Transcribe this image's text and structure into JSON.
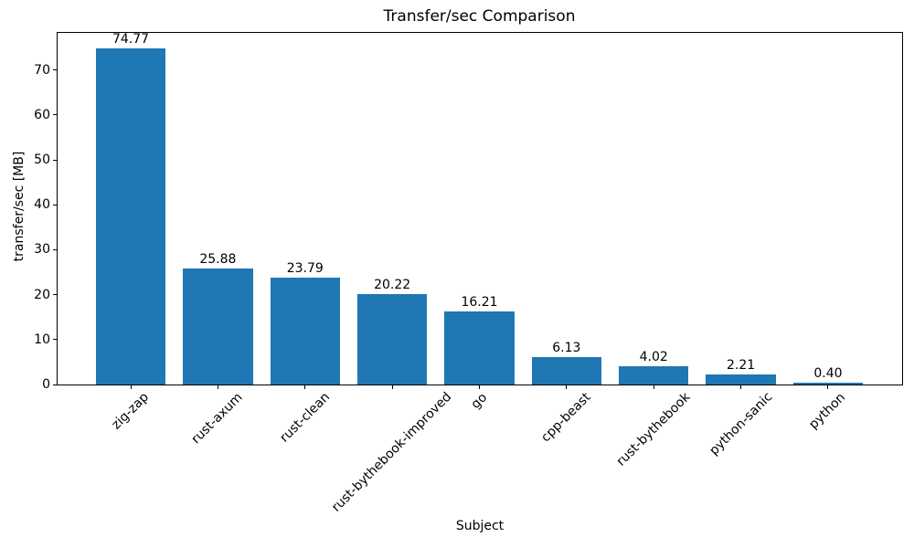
{
  "chart_data": {
    "type": "bar",
    "title": "Transfer/sec Comparison",
    "xlabel": "Subject",
    "ylabel": "transfer/sec [MB]",
    "categories": [
      "zig-zap",
      "rust-axum",
      "rust-clean",
      "rust-bythebook-improved",
      "go",
      "cpp-beast",
      "rust-bythebook",
      "python-sanic",
      "python"
    ],
    "values": [
      74.77,
      25.88,
      23.79,
      20.22,
      16.21,
      6.13,
      4.02,
      2.21,
      0.4
    ],
    "value_labels": [
      "74.77",
      "25.88",
      "23.79",
      "20.22",
      "16.21",
      "6.13",
      "4.02",
      "2.21",
      "0.40"
    ],
    "yticks": [
      0,
      10,
      20,
      30,
      40,
      50,
      60,
      70
    ],
    "ylim": [
      0,
      78.5
    ],
    "bar_color": "#1f77b4",
    "spine_color": "#000000",
    "text_color": "#000000",
    "background_color": "#ffffff",
    "grid": false,
    "legend": null,
    "x_tick_rotation": 45
  }
}
